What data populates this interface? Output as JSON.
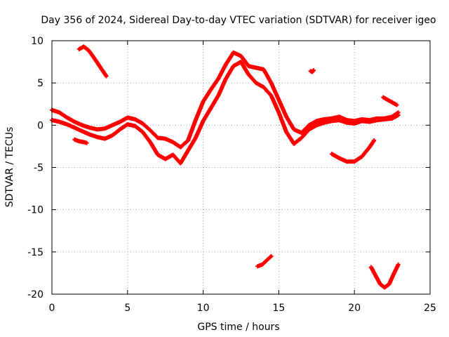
{
  "chart_data": {
    "type": "scatter",
    "title": "Day 356 of 2024, Sidereal Day-to-day VTEC variation (SDTVAR) for receiver igeo",
    "xlabel": "GPS time / hours",
    "ylabel": "SDTVAR / TECUs",
    "xlim": [
      0,
      25
    ],
    "ylim": [
      -20,
      10
    ],
    "x_ticks": [
      "0",
      "5",
      "10",
      "15",
      "20",
      "25"
    ],
    "y_ticks": [
      "10",
      "5",
      "0",
      "-5",
      "-10",
      "-15",
      "-20"
    ],
    "grid": true,
    "marker": "+",
    "series": [
      {
        "name": "main-track-upper",
        "color": "#ff0000",
        "x": [
          0.0,
          0.5,
          1.0,
          1.5,
          2.0,
          2.5,
          3.0,
          3.5,
          4.0,
          4.5,
          5.0,
          5.5,
          6.0,
          6.5,
          7.0,
          7.5,
          8.0,
          8.5,
          9.0,
          9.5,
          10.0,
          10.5,
          11.0,
          11.5,
          12.0,
          12.5,
          13.0,
          13.5,
          14.0,
          14.5,
          15.0,
          15.5,
          16.0,
          16.5,
          17.0,
          17.5,
          18.0,
          18.5,
          19.0,
          19.5,
          20.0,
          20.5,
          21.0,
          21.5,
          22.0,
          22.5,
          22.9
        ],
        "y": [
          1.8,
          1.5,
          0.9,
          0.4,
          0.0,
          -0.3,
          -0.5,
          -0.4,
          0.0,
          0.4,
          0.9,
          0.7,
          0.2,
          -0.6,
          -1.5,
          -1.6,
          -2.0,
          -2.6,
          -1.8,
          0.6,
          2.8,
          4.2,
          5.5,
          7.2,
          8.6,
          8.2,
          7.0,
          6.8,
          6.6,
          5.0,
          3.0,
          1.0,
          -0.5,
          -0.9,
          0.0,
          0.5,
          0.7,
          0.8,
          1.0,
          0.6,
          0.5,
          0.7,
          0.6,
          0.8,
          0.8,
          1.0,
          1.5
        ]
      },
      {
        "name": "main-track-lower",
        "color": "#ff0000",
        "x": [
          0.0,
          0.5,
          1.0,
          1.5,
          2.0,
          2.5,
          3.0,
          3.5,
          4.0,
          4.5,
          5.0,
          5.5,
          6.0,
          6.5,
          7.0,
          7.5,
          8.0,
          8.5,
          9.0,
          9.5,
          10.0,
          10.5,
          11.0,
          11.5,
          12.0,
          12.5,
          13.0,
          13.5,
          14.0,
          14.5,
          15.0,
          15.5,
          16.0,
          16.5,
          17.0,
          17.5,
          18.0,
          18.5,
          19.0,
          19.5,
          20.0,
          20.5,
          21.0,
          21.5,
          22.0,
          22.5,
          22.9
        ],
        "y": [
          0.6,
          0.4,
          0.1,
          -0.3,
          -0.7,
          -1.1,
          -1.4,
          -1.6,
          -1.2,
          -0.5,
          0.1,
          -0.1,
          -0.8,
          -2.0,
          -3.5,
          -4.0,
          -3.5,
          -4.5,
          -3.0,
          -1.5,
          0.5,
          2.0,
          3.5,
          5.5,
          7.0,
          7.5,
          6.0,
          5.0,
          4.5,
          3.5,
          1.5,
          -0.8,
          -2.2,
          -1.5,
          -0.5,
          0.0,
          0.3,
          0.5,
          0.6,
          0.3,
          0.2,
          0.5,
          0.4,
          0.6,
          0.7,
          0.8,
          1.2
        ]
      },
      {
        "name": "arc-early",
        "color": "#ff0000",
        "x": [
          1.8,
          2.1,
          2.4,
          2.7,
          3.0,
          3.3,
          3.6
        ],
        "y": [
          9.0,
          9.3,
          8.9,
          8.2,
          7.4,
          6.6,
          5.8
        ]
      },
      {
        "name": "segment-near-1h",
        "color": "#ff0000",
        "x": [
          1.5,
          1.8,
          2.1,
          2.3
        ],
        "y": [
          -1.7,
          -1.9,
          -2.0,
          -2.1
        ]
      },
      {
        "name": "dot-17h",
        "color": "#ff0000",
        "x": [
          17.1,
          17.2,
          17.3
        ],
        "y": [
          6.4,
          6.3,
          6.5
        ]
      },
      {
        "name": "arc-20h",
        "color": "#ff0000",
        "x": [
          18.5,
          19.0,
          19.5,
          20.0,
          20.5,
          21.0,
          21.3
        ],
        "y": [
          -3.4,
          -3.9,
          -4.3,
          -4.3,
          -3.7,
          -2.6,
          -1.8
        ]
      },
      {
        "name": "segment-22h",
        "color": "#ff0000",
        "x": [
          21.9,
          22.2,
          22.5,
          22.8
        ],
        "y": [
          3.3,
          3.0,
          2.7,
          2.4
        ]
      },
      {
        "name": "segment-14h-low",
        "color": "#ff0000",
        "x": [
          13.6,
          13.9,
          14.2,
          14.5
        ],
        "y": [
          -16.7,
          -16.5,
          -16.0,
          -15.5
        ]
      },
      {
        "name": "arc-22h-low",
        "color": "#ff0000",
        "x": [
          21.1,
          21.4,
          21.7,
          22.0,
          22.3,
          22.6,
          22.9
        ],
        "y": [
          -16.8,
          -17.8,
          -18.8,
          -19.2,
          -18.8,
          -17.6,
          -16.5
        ]
      }
    ]
  }
}
